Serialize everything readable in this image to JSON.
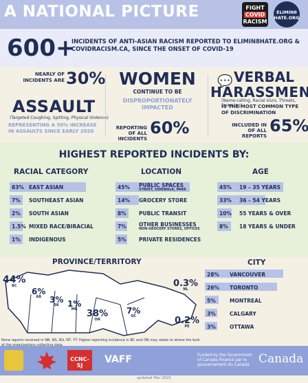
{
  "header": {
    "title": "A NATIONAL PICTURE",
    "fight_logo": [
      "FIGHT",
      "COVID",
      "RACISM"
    ],
    "elim_logo": "ELIMIN8 HATE.ORG"
  },
  "headline": {
    "number": "600+",
    "text": "INCIDENTS OF ANTI-ASIAN RACISM REPORTED TO ELIMIN8HATE.ORG & COVIDRACISM.CA, SINCE THE ONSET OF COVID-19"
  },
  "assault": {
    "prefix": "NEARLY OF INCIDENTS ARE",
    "value": "30%",
    "title": "ASSAULT",
    "note": "(Targeted Coughing, Spitting, Physical Violence)",
    "increase": "REPRESENTING A 50% INCREASE IN ASSAULTS SINCE EARLY 2020"
  },
  "women": {
    "title": "WOMEN",
    "line1": "CONTINUE TO BE",
    "line2": "DISPROPORTIONATELY IMPACTED",
    "reporting": "REPORTING OF ALL INCIDENTS",
    "value": "60%"
  },
  "verbal": {
    "title1": "VERBAL",
    "title2": "HARASSMENT",
    "note": "(Name-calling, Racial slurs, Threats, Swearing)",
    "desc": "IS THE MOST COMMON TYPE OF DISCRIMINATION",
    "included": "INCLUDED IN OF ALL REPORTS",
    "value": "65%"
  },
  "highest": {
    "title": "HIGHEST REPORTED INCIDENTS BY:"
  },
  "racial": {
    "header": "RACIAL CATEGORY",
    "rows": [
      {
        "pct": "83%",
        "label": "EAST ASIAN",
        "value": 83
      },
      {
        "pct": "7%",
        "label": "SOUTHEAST ASIAN",
        "value": 7
      },
      {
        "pct": "2%",
        "label": "SOUTH ASIAN",
        "value": 2
      },
      {
        "pct": "1.5%",
        "label": "MIXED RACE/BIRACIAL",
        "value": 1.5
      },
      {
        "pct": "1%",
        "label": "INDIGENOUS",
        "value": 1
      }
    ]
  },
  "location": {
    "header": "LOCATION",
    "rows": [
      {
        "pct": "45%",
        "label": "PUBLIC SPACES",
        "sub": "STREET, SIDEWALK, PARK",
        "value": 45
      },
      {
        "pct": "14%",
        "label": "GROCERY STORE",
        "sub": "",
        "value": 14
      },
      {
        "pct": "8%",
        "label": "PUBLIC TRANSIT",
        "sub": "",
        "value": 8
      },
      {
        "pct": "7%",
        "label": "OTHER BUSINESSES",
        "sub": "NON-GROCERY STORES, OFFICES",
        "value": 7
      },
      {
        "pct": "5%",
        "label": "PRIVATE RESIDENCES",
        "sub": "",
        "value": 5
      }
    ]
  },
  "age": {
    "header": "AGE",
    "rows": [
      {
        "pct": "45%",
        "label": "19 – 35 YEARS",
        "value": 45
      },
      {
        "pct": "33%",
        "label": "36 – 54 YEARS",
        "value": 33
      },
      {
        "pct": "10%",
        "label": "55 YEARS & OVER",
        "value": 10
      },
      {
        "pct": "8%",
        "label": "18 YEARS & UNDER",
        "value": 8
      }
    ]
  },
  "province": {
    "header": "PROVINCE/TERRITORY",
    "items": [
      {
        "value": "44%",
        "abbr": "BC"
      },
      {
        "value": "6%",
        "abbr": "AB"
      },
      {
        "value": "3%",
        "abbr": "SK"
      },
      {
        "value": "1%",
        "abbr": "MB"
      },
      {
        "value": "38%",
        "abbr": "ON"
      },
      {
        "value": "7%",
        "abbr": "QC"
      },
      {
        "value": "0.3%",
        "abbr": "NL"
      },
      {
        "value": "0.2%",
        "abbr": "PE"
      }
    ],
    "note": "None reports received in NB, NS, NU, NT, YT. Higher reporting incidence in BC and ON may relate to where the bulk of the organizations collecting data."
  },
  "city": {
    "header": "CITY",
    "rows": [
      {
        "pct": "28%",
        "label": "VANCOUVER",
        "value": 28
      },
      {
        "pct": "26%",
        "label": "TORONTO",
        "value": 26
      },
      {
        "pct": "5%",
        "label": "MONTREAL",
        "value": 5
      },
      {
        "pct": "3%",
        "label": "CALGARY",
        "value": 3
      },
      {
        "pct": "3%",
        "label": "OTTAWA",
        "value": 3
      }
    ]
  },
  "footer": {
    "logo_ccncsj": "CCNC-SJ",
    "logo_vaff": "VAFF",
    "funding": "Funded by the Government of Canada Financé par le gouvernement du Canada",
    "canada": "Canada",
    "credit": "updated Mar 2021"
  },
  "colors": {
    "accent": "#b7c2e6",
    "navy": "#1f2d57",
    "light_blue": "#8aa0d7",
    "panel": "#e7f0d9"
  }
}
